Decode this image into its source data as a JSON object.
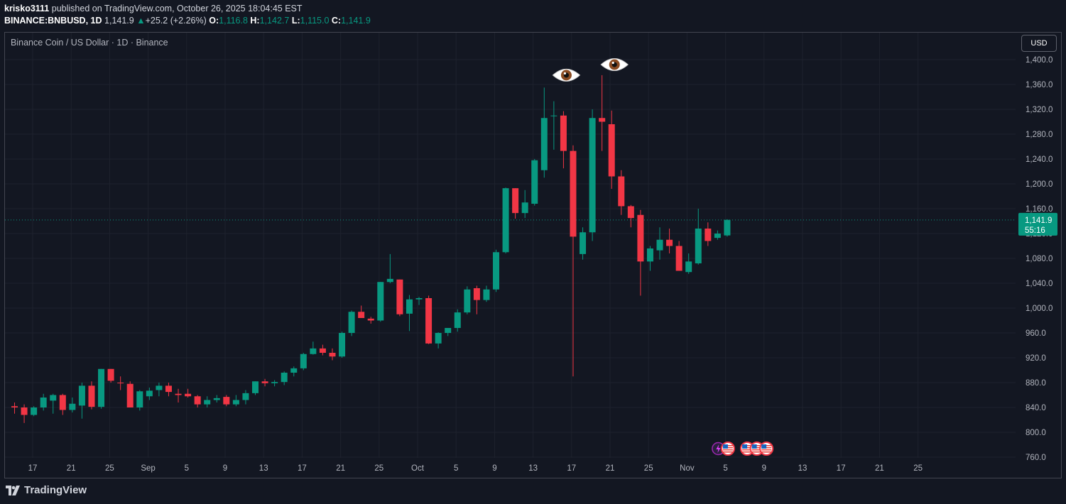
{
  "header": {
    "user": "krisko3111",
    "published": "published on TradingView.com, October 26, 2025 18:04:45 EST",
    "symbol": "BINANCE:BNBUSD,",
    "interval": "1D",
    "last": "1,141.9",
    "change": "+25.2 (+2.26%)",
    "o_label": "O:",
    "o": "1,116.8",
    "h_label": "H:",
    "h": "1,142.7",
    "l_label": "L:",
    "l": "1,115.0",
    "c_label": "C:",
    "c": "1,141.9"
  },
  "currency_button": "USD",
  "footer": {
    "brand": "TradingView"
  },
  "colors": {
    "up": "#089981",
    "down": "#f23645",
    "background": "#131722",
    "grid": "#1e222d",
    "text": "#b2b5be"
  },
  "icons": [
    "eyes-emoji-icon",
    "eyes-emoji-icon",
    "lightning-event-icon",
    "us-flag-event-icon"
  ],
  "chart_data": {
    "type": "candlestick",
    "title": "Binance Coin / US Dollar · 1D · Binance",
    "x_ticks": [
      "17",
      "21",
      "25",
      "Sep",
      "5",
      "9",
      "13",
      "17",
      "21",
      "25",
      "Oct",
      "5",
      "9",
      "13",
      "17",
      "21",
      "25",
      "Nov",
      "5",
      "9",
      "13",
      "17",
      "21",
      "25"
    ],
    "y_ticks": [
      "1,400.0",
      "1,360.0",
      "1,320.0",
      "1,280.0",
      "1,240.0",
      "1,200.0",
      "1,160.0",
      "1,120.0",
      "1,080.0",
      "1,040.0",
      "1,000.0",
      "960.0",
      "920.0",
      "880.0",
      "840.0",
      "800.0",
      "760.0"
    ],
    "ylim": [
      755,
      1420
    ],
    "start_date": "2025-08-14",
    "last_price": {
      "price": 1141.9,
      "label": "1,141.9",
      "countdown": "55:16"
    },
    "candles": [
      [
        842,
        848,
        830,
        840
      ],
      [
        840,
        845,
        815,
        828
      ],
      [
        828,
        842,
        826,
        840
      ],
      [
        840,
        862,
        835,
        856
      ],
      [
        851,
        862,
        830,
        860
      ],
      [
        860,
        862,
        828,
        836
      ],
      [
        836,
        856,
        832,
        846
      ],
      [
        843,
        880,
        822,
        875
      ],
      [
        875,
        882,
        837,
        841
      ],
      [
        841,
        902,
        838,
        902
      ],
      [
        902,
        902,
        880,
        883
      ],
      [
        880,
        890,
        868,
        879
      ],
      [
        878,
        882,
        840,
        840
      ],
      [
        840,
        868,
        835,
        866
      ],
      [
        858,
        872,
        852,
        867
      ],
      [
        868,
        880,
        858,
        875
      ],
      [
        875,
        880,
        858,
        865
      ],
      [
        862,
        870,
        848,
        860
      ],
      [
        862,
        870,
        856,
        858
      ],
      [
        858,
        860,
        840,
        845
      ],
      [
        845,
        858,
        840,
        852
      ],
      [
        852,
        860,
        848,
        855
      ],
      [
        857,
        860,
        842,
        845
      ],
      [
        845,
        860,
        842,
        852
      ],
      [
        852,
        868,
        845,
        863
      ],
      [
        863,
        882,
        860,
        882
      ],
      [
        882,
        886,
        874,
        879
      ],
      [
        879,
        884,
        874,
        881
      ],
      [
        881,
        898,
        876,
        896
      ],
      [
        896,
        906,
        890,
        903
      ],
      [
        903,
        928,
        900,
        926
      ],
      [
        926,
        946,
        925,
        935
      ],
      [
        935,
        941,
        924,
        928
      ],
      [
        928,
        935,
        916,
        922
      ],
      [
        922,
        962,
        920,
        960
      ],
      [
        960,
        996,
        955,
        994
      ],
      [
        994,
        1004,
        984,
        984
      ],
      [
        983,
        986,
        975,
        980
      ],
      [
        980,
        1042,
        978,
        1042
      ],
      [
        1042,
        1087,
        1040,
        1047
      ],
      [
        1046,
        1046,
        987,
        990
      ],
      [
        991,
        1021,
        963,
        1014
      ],
      [
        1014,
        1018,
        1005,
        1016
      ],
      [
        1016,
        1020,
        942,
        943
      ],
      [
        943,
        961,
        935,
        960
      ],
      [
        960,
        968,
        955,
        968
      ],
      [
        968,
        998,
        962,
        993
      ],
      [
        993,
        1035,
        990,
        1030
      ],
      [
        1032,
        1036,
        990,
        1013
      ],
      [
        1013,
        1036,
        1010,
        1030
      ],
      [
        1030,
        1094,
        1026,
        1090
      ],
      [
        1090,
        1194,
        1088,
        1193
      ],
      [
        1193,
        1193,
        1144,
        1153
      ],
      [
        1153,
        1190,
        1145,
        1170
      ],
      [
        1168,
        1240,
        1165,
        1238
      ],
      [
        1222,
        1355,
        1210,
        1306
      ],
      [
        1309,
        1333,
        1255,
        1310
      ],
      [
        1310,
        1317,
        1225,
        1253
      ],
      [
        1253,
        1262,
        890,
        1115
      ],
      [
        1087,
        1130,
        1078,
        1122
      ],
      [
        1122,
        1320,
        1108,
        1306
      ],
      [
        1306,
        1375,
        1253,
        1300
      ],
      [
        1296,
        1318,
        1192,
        1212
      ],
      [
        1212,
        1222,
        1150,
        1164
      ],
      [
        1164,
        1166,
        1130,
        1145
      ],
      [
        1150,
        1158,
        1020,
        1075
      ],
      [
        1075,
        1100,
        1060,
        1096
      ],
      [
        1093,
        1130,
        1078,
        1110
      ],
      [
        1110,
        1128,
        1088,
        1100
      ],
      [
        1100,
        1108,
        1060,
        1060
      ],
      [
        1058,
        1088,
        1055,
        1075
      ],
      [
        1072,
        1160,
        1070,
        1128
      ],
      [
        1128,
        1138,
        1100,
        1108
      ],
      [
        1113,
        1125,
        1110,
        1120
      ],
      [
        1117,
        1143,
        1115,
        1142
      ]
    ],
    "annotations": [
      {
        "type": "icon",
        "name": "eyes-emoji-icon",
        "date_index": 57,
        "price": 1375
      },
      {
        "type": "icon",
        "name": "eyes-emoji-icon",
        "date_index": 62,
        "price": 1392
      }
    ],
    "events": [
      {
        "type": "lightning",
        "date_index": 73
      },
      {
        "type": "us-flag",
        "date_index": 74
      },
      {
        "type": "us-flag",
        "date_index": 76
      },
      {
        "type": "us-flag",
        "date_index": 77
      },
      {
        "type": "us-flag",
        "date_index": 78
      }
    ]
  }
}
